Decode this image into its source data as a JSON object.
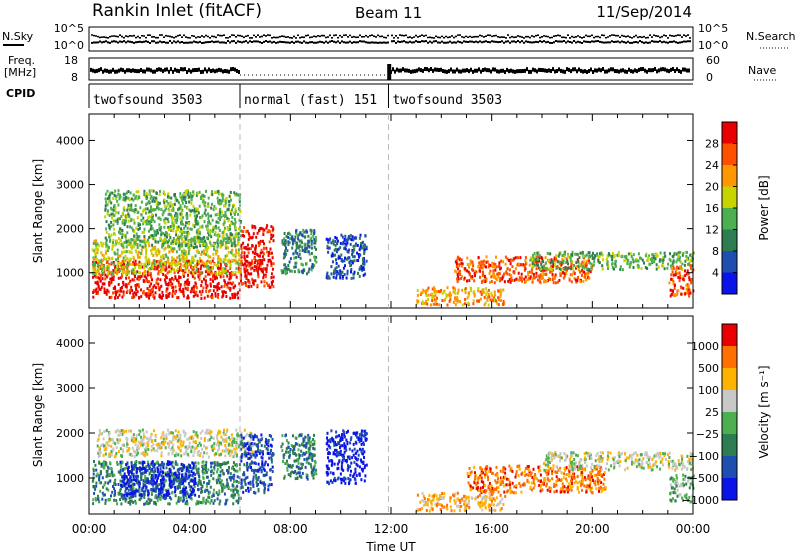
{
  "header": {
    "title": "Rankin Inlet (fitACF)",
    "beam": "Beam 11",
    "date": "11/Sep/2014"
  },
  "status_panels": {
    "nsky_label": "N.Sky",
    "nsearch_label": "N.Search",
    "freq_label": "Freq.",
    "freq_unit": "[MHz]",
    "nave_label": "Nave",
    "cpid_label": "CPID",
    "nsky_ticks": [
      "10^5",
      "10^0"
    ],
    "nsearch_ticks": [
      "10^5",
      "10^0"
    ],
    "freq_ticks": [
      "18",
      "8"
    ],
    "nave_ticks": [
      "60",
      "0"
    ],
    "cpid_segments": [
      {
        "label": "twofsound 3503",
        "start_h": 0,
        "end_h": 6
      },
      {
        "label": "normal (fast) 151",
        "start_h": 6,
        "end_h": 11.9
      },
      {
        "label": "twofsound 3503",
        "start_h": 11.9,
        "end_h": 24
      }
    ]
  },
  "chart_data": [
    {
      "type": "heatmap",
      "name": "power",
      "xlabel": "",
      "ylabel": "Slant Range [km]",
      "xlim": [
        0,
        24
      ],
      "ylim": [
        200,
        4600
      ],
      "y_ticks": [
        1000,
        2000,
        3000,
        4000
      ],
      "colorbar": {
        "label": "Power [dB]",
        "ticks": [
          "4",
          "8",
          "12",
          "16",
          "20",
          "24",
          "28"
        ],
        "colors": [
          "#0a14e8",
          "#1e4fb0",
          "#2e7d50",
          "#4caf50",
          "#c8d400",
          "#ff9800",
          "#ff5000",
          "#e80000"
        ]
      },
      "scatter_regions": [
        {
          "t0": 0.1,
          "t1": 6,
          "r0": 450,
          "r1": 1300,
          "level": 7
        },
        {
          "t0": 0.1,
          "t1": 6,
          "r0": 1000,
          "r1": 1800,
          "level": 4
        },
        {
          "t0": 0.6,
          "t1": 6,
          "r0": 1600,
          "r1": 2900,
          "level": 3
        },
        {
          "t0": 6,
          "t1": 7.3,
          "r0": 700,
          "r1": 2100,
          "level": 7
        },
        {
          "t0": 7.6,
          "t1": 9,
          "r0": 1000,
          "r1": 2000,
          "level": 2
        },
        {
          "t0": 9.4,
          "t1": 11,
          "r0": 900,
          "r1": 1900,
          "level": 1
        },
        {
          "t0": 13,
          "t1": 16.5,
          "r0": 300,
          "r1": 700,
          "level": 5
        },
        {
          "t0": 14.5,
          "t1": 20,
          "r0": 800,
          "r1": 1400,
          "level": 6
        },
        {
          "t0": 17.5,
          "t1": 24,
          "r0": 1100,
          "r1": 1500,
          "level": 3
        },
        {
          "t0": 23,
          "t1": 24,
          "r0": 500,
          "r1": 1200,
          "level": 6
        }
      ]
    },
    {
      "type": "heatmap",
      "name": "velocity",
      "xlabel": "Time UT",
      "ylabel": "Slant Range [km]",
      "xlim": [
        0,
        24
      ],
      "ylim": [
        200,
        4600
      ],
      "x_ticks": [
        "00:00",
        "04:00",
        "08:00",
        "12:00",
        "16:00",
        "20:00",
        "00:00"
      ],
      "y_ticks": [
        1000,
        2000,
        3000,
        4000
      ],
      "colorbar": {
        "label": "Velocity [m s⁻¹]",
        "ticks": [
          "1000",
          "500",
          "100",
          "25",
          "−25",
          "−100",
          "−500",
          "−1000"
        ],
        "colors": [
          "#0a14e8",
          "#1e4fb0",
          "#2e7d50",
          "#4caf50",
          "#c8c8c8",
          "#ffb300",
          "#ff7000",
          "#e80000"
        ]
      },
      "scatter_regions": [
        {
          "t0": 0.1,
          "t1": 6,
          "r0": 450,
          "r1": 1400,
          "level": 2
        },
        {
          "t0": 1.2,
          "t1": 4.2,
          "r0": 600,
          "r1": 1400,
          "level": 0
        },
        {
          "t0": 0.3,
          "t1": 6.5,
          "r0": 1500,
          "r1": 2100,
          "level": 4
        },
        {
          "t0": 6,
          "t1": 7.3,
          "r0": 700,
          "r1": 2000,
          "level": 1
        },
        {
          "t0": 7.6,
          "t1": 9,
          "r0": 1000,
          "r1": 2000,
          "level": 2
        },
        {
          "t0": 9.4,
          "t1": 11,
          "r0": 900,
          "r1": 2100,
          "level": 0
        },
        {
          "t0": 13,
          "t1": 16.5,
          "r0": 300,
          "r1": 700,
          "level": 5
        },
        {
          "t0": 15,
          "t1": 20.5,
          "r0": 700,
          "r1": 1300,
          "level": 6
        },
        {
          "t0": 18,
          "t1": 24,
          "r0": 1200,
          "r1": 1600,
          "level": 4
        },
        {
          "t0": 23,
          "t1": 24,
          "r0": 500,
          "r1": 1100,
          "level": 3
        }
      ]
    }
  ]
}
